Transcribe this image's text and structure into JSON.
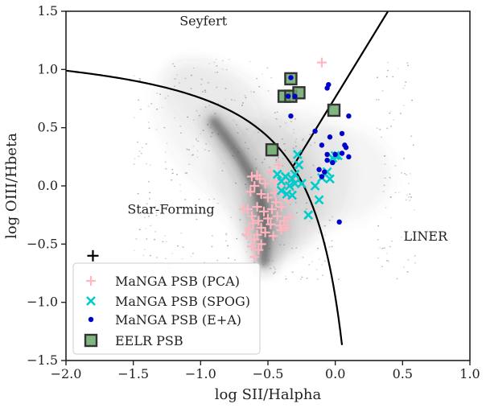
{
  "chart_data": {
    "type": "scatter",
    "title": "",
    "xlabel": "log SII/Halpha",
    "ylabel": "log OIII/Hbeta",
    "xlim": [
      -2.0,
      1.0
    ],
    "ylim": [
      -1.5,
      1.5
    ],
    "xticks": [
      -2.0,
      -1.5,
      -1.0,
      -0.5,
      0.0,
      0.5,
      1.0
    ],
    "yticks": [
      -1.5,
      -1.0,
      -0.5,
      0.0,
      0.5,
      1.0,
      1.5
    ],
    "xtick_labels": [
      "−2.0",
      "−1.5",
      "−1.0",
      "−0.5",
      "0.0",
      "0.5",
      "1.0"
    ],
    "ytick_labels": [
      "−1.5",
      "−1.0",
      "−0.5",
      "0.0",
      "0.5",
      "1.0",
      "1.5"
    ],
    "region_labels": [
      {
        "text": "Seyfert",
        "x": -0.98,
        "y": 1.38
      },
      {
        "text": "Star-Forming",
        "x": -1.22,
        "y": -0.24
      },
      {
        "text": "LINER",
        "x": 0.67,
        "y": -0.47
      }
    ],
    "demarcation_lines": [
      {
        "name": "Kewley 2001 SF/AGN",
        "equation": "0.72/(x-0.32)+1.30",
        "x_range": [
          -2.0,
          0.05
        ]
      },
      {
        "name": "Kewley 2006 Seyfert/LINER",
        "equation": "1.89*x+0.76",
        "x_range": [
          -0.31,
          0.4
        ]
      }
    ],
    "error_marker": {
      "x": -1.8,
      "y": -0.6
    },
    "colors": {
      "pca": "#ffb6c1",
      "spog": "#00cccc",
      "ea": "#0000cc",
      "eelr_face": "#6aa86a",
      "eelr_edge": "#333333",
      "background": "#555555"
    },
    "series": [
      {
        "name": "MaNGA PSB (PCA)",
        "marker": "plus",
        "points": [
          [
            -0.1,
            1.06
          ],
          [
            -0.58,
            0.09
          ],
          [
            -0.62,
            0.08
          ],
          [
            -0.56,
            0.06
          ],
          [
            -0.48,
            0.12
          ],
          [
            -0.42,
            0.18
          ],
          [
            -0.36,
            0.06
          ],
          [
            -0.33,
            0.02
          ],
          [
            -0.3,
            0.05
          ],
          [
            -0.38,
            0.0
          ],
          [
            -0.45,
            0.04
          ],
          [
            -0.52,
            0.02
          ],
          [
            -0.6,
            0.0
          ],
          [
            -0.63,
            -0.05
          ],
          [
            -0.55,
            -0.07
          ],
          [
            -0.5,
            -0.1
          ],
          [
            -0.44,
            -0.14
          ],
          [
            -0.38,
            -0.07
          ],
          [
            -0.35,
            -0.12
          ],
          [
            -0.4,
            -0.18
          ],
          [
            -0.47,
            -0.2
          ],
          [
            -0.53,
            -0.22
          ],
          [
            -0.58,
            -0.18
          ],
          [
            -0.65,
            -0.2
          ],
          [
            -0.62,
            -0.26
          ],
          [
            -0.57,
            -0.3
          ],
          [
            -0.5,
            -0.28
          ],
          [
            -0.43,
            -0.26
          ],
          [
            -0.38,
            -0.3
          ],
          [
            -0.34,
            -0.27
          ],
          [
            -0.41,
            -0.34
          ],
          [
            -0.48,
            -0.33
          ],
          [
            -0.55,
            -0.36
          ],
          [
            -0.61,
            -0.32
          ],
          [
            -0.64,
            -0.37
          ],
          [
            -0.58,
            -0.42
          ],
          [
            -0.52,
            -0.4
          ],
          [
            -0.46,
            -0.43
          ],
          [
            -0.4,
            -0.38
          ],
          [
            -0.6,
            -0.46
          ],
          [
            -0.55,
            -0.5
          ],
          [
            -0.62,
            -0.52
          ],
          [
            -0.57,
            -0.55
          ],
          [
            -0.6,
            -0.61
          ],
          [
            -0.66,
            -0.42
          ],
          [
            -0.36,
            -0.36
          ],
          [
            -0.45,
            -0.06
          ],
          [
            -0.68,
            -0.2
          ]
        ]
      },
      {
        "name": "MaNGA PSB (SPOG)",
        "marker": "x",
        "points": [
          [
            -0.28,
            0.27
          ],
          [
            -0.27,
            0.18
          ],
          [
            -0.43,
            0.1
          ],
          [
            -0.37,
            0.08
          ],
          [
            -0.32,
            0.06
          ],
          [
            -0.4,
            0.04
          ],
          [
            -0.34,
            0.0
          ],
          [
            -0.3,
            0.02
          ],
          [
            -0.25,
            0.02
          ],
          [
            -0.4,
            -0.04
          ],
          [
            -0.36,
            -0.07
          ],
          [
            -0.32,
            -0.08
          ],
          [
            -0.15,
            0.0
          ],
          [
            -0.1,
            0.07
          ],
          [
            -0.06,
            0.12
          ],
          [
            -0.02,
            0.24
          ],
          [
            0.0,
            0.26
          ],
          [
            0.02,
            0.26
          ],
          [
            -0.04,
            0.06
          ],
          [
            -0.12,
            -0.12
          ],
          [
            -0.2,
            -0.25
          ],
          [
            -0.3,
            0.1
          ]
        ]
      },
      {
        "name": "MaNGA PSB (E+A)",
        "marker": "dot",
        "points": [
          [
            -0.33,
            0.93
          ],
          [
            -0.35,
            0.77
          ],
          [
            -0.3,
            0.77
          ],
          [
            -0.33,
            0.6
          ],
          [
            -0.05,
            0.87
          ],
          [
            -0.06,
            0.84
          ],
          [
            0.1,
            0.6
          ],
          [
            -0.15,
            0.47
          ],
          [
            -0.04,
            0.42
          ],
          [
            0.05,
            0.45
          ],
          [
            0.07,
            0.35
          ],
          [
            -0.1,
            0.35
          ],
          [
            -0.06,
            0.27
          ],
          [
            0.0,
            0.27
          ],
          [
            0.05,
            0.28
          ],
          [
            0.1,
            0.25
          ],
          [
            -0.06,
            0.22
          ],
          [
            -0.12,
            0.14
          ],
          [
            -0.08,
            0.12
          ],
          [
            -0.1,
            0.08
          ],
          [
            0.03,
            -0.31
          ],
          [
            0.08,
            0.33
          ],
          [
            -0.02,
            0.2
          ]
        ]
      },
      {
        "name": "EELR PSB",
        "marker": "square",
        "points": [
          [
            -0.33,
            0.92
          ],
          [
            -0.38,
            0.77
          ],
          [
            -0.33,
            0.77
          ],
          [
            -0.27,
            0.8
          ],
          [
            -0.01,
            0.65
          ],
          [
            -0.47,
            0.31
          ]
        ]
      }
    ],
    "legend": {
      "placement": "lower-left",
      "entries": [
        "MaNGA PSB (PCA)",
        "MaNGA PSB (SPOG)",
        "MaNGA PSB (E+A)",
        "EELR PSB"
      ]
    }
  }
}
